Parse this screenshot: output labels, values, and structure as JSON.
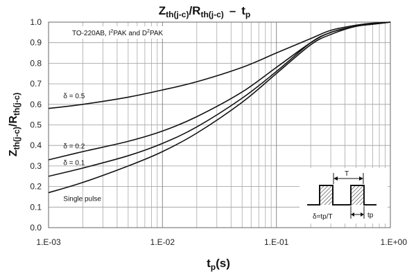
{
  "chart_data": {
    "type": "line",
    "title": {
      "main_a": "Z",
      "main_a_sub": "th(j-c)",
      "main_b": "/R",
      "main_b_sub": "th(j-c)",
      "dash": "–",
      "main_c": "t",
      "main_c_sub": "p"
    },
    "ylabel": {
      "a": "Z",
      "a_sub": "th(j-c)",
      "b": "/R",
      "b_sub": "th(j-c)"
    },
    "xlabel": {
      "a": "t",
      "a_sub": "p",
      "b": "(s)"
    },
    "x_scale": "log",
    "xlim": [
      0.001,
      1
    ],
    "ylim": [
      0,
      1
    ],
    "grid": true,
    "x_ticks": [
      {
        "value": 0.001,
        "label": "1.E-03"
      },
      {
        "value": 0.01,
        "label": "1.E-02"
      },
      {
        "value": 0.1,
        "label": "1.E-01"
      },
      {
        "value": 1,
        "label": "1.E+00"
      }
    ],
    "y_ticks": [
      {
        "value": 0.0,
        "label": "0.0"
      },
      {
        "value": 0.1,
        "label": "0.1"
      },
      {
        "value": 0.2,
        "label": "0.2"
      },
      {
        "value": 0.3,
        "label": "0.3"
      },
      {
        "value": 0.4,
        "label": "0.4"
      },
      {
        "value": 0.5,
        "label": "0.5"
      },
      {
        "value": 0.6,
        "label": "0.6"
      },
      {
        "value": 0.7,
        "label": "0.7"
      },
      {
        "value": 0.8,
        "label": "0.8"
      },
      {
        "value": 0.9,
        "label": "0.9"
      },
      {
        "value": 1.0,
        "label": "1.0"
      }
    ],
    "package_note": {
      "a": "TO-220AB, I",
      "b": "2",
      "c": "PAK and D",
      "d": "2",
      "e": "PAK"
    },
    "series": [
      {
        "name": "δ = 0.5",
        "label_at": {
          "x": 0.00135,
          "y": 0.63
        },
        "points": [
          [
            0.001,
            0.58
          ],
          [
            0.002,
            0.6
          ],
          [
            0.005,
            0.635
          ],
          [
            0.01,
            0.67
          ],
          [
            0.02,
            0.71
          ],
          [
            0.05,
            0.78
          ],
          [
            0.1,
            0.85
          ],
          [
            0.2,
            0.92
          ],
          [
            0.3,
            0.96
          ],
          [
            0.5,
            0.985
          ],
          [
            0.7,
            0.995
          ],
          [
            1,
            1.0
          ]
        ]
      },
      {
        "name": "δ = 0.2",
        "label_at": {
          "x": 0.00135,
          "y": 0.385
        },
        "points": [
          [
            0.001,
            0.33
          ],
          [
            0.002,
            0.37
          ],
          [
            0.005,
            0.42
          ],
          [
            0.01,
            0.47
          ],
          [
            0.02,
            0.54
          ],
          [
            0.05,
            0.66
          ],
          [
            0.1,
            0.78
          ],
          [
            0.2,
            0.9
          ],
          [
            0.3,
            0.95
          ],
          [
            0.5,
            0.98
          ],
          [
            0.7,
            0.99
          ],
          [
            1,
            1.0
          ]
        ]
      },
      {
        "name": "δ = 0.1",
        "label_at": {
          "x": 0.00135,
          "y": 0.305
        },
        "points": [
          [
            0.001,
            0.25
          ],
          [
            0.002,
            0.29
          ],
          [
            0.005,
            0.35
          ],
          [
            0.01,
            0.41
          ],
          [
            0.02,
            0.49
          ],
          [
            0.05,
            0.63
          ],
          [
            0.1,
            0.76
          ],
          [
            0.2,
            0.9
          ],
          [
            0.3,
            0.95
          ],
          [
            0.5,
            0.98
          ],
          [
            0.7,
            0.99
          ],
          [
            1,
            1.0
          ]
        ]
      },
      {
        "name": "Single pulse",
        "label_at": {
          "x": 0.00135,
          "y": 0.13
        },
        "points": [
          [
            0.001,
            0.17
          ],
          [
            0.002,
            0.22
          ],
          [
            0.005,
            0.3
          ],
          [
            0.01,
            0.37
          ],
          [
            0.02,
            0.46
          ],
          [
            0.05,
            0.61
          ],
          [
            0.1,
            0.75
          ],
          [
            0.2,
            0.89
          ],
          [
            0.3,
            0.94
          ],
          [
            0.5,
            0.98
          ],
          [
            0.7,
            0.99
          ],
          [
            1,
            1.0
          ]
        ]
      }
    ],
    "inset": {
      "T": "T",
      "delta": "δ=tp/T",
      "tp": "tp"
    }
  }
}
